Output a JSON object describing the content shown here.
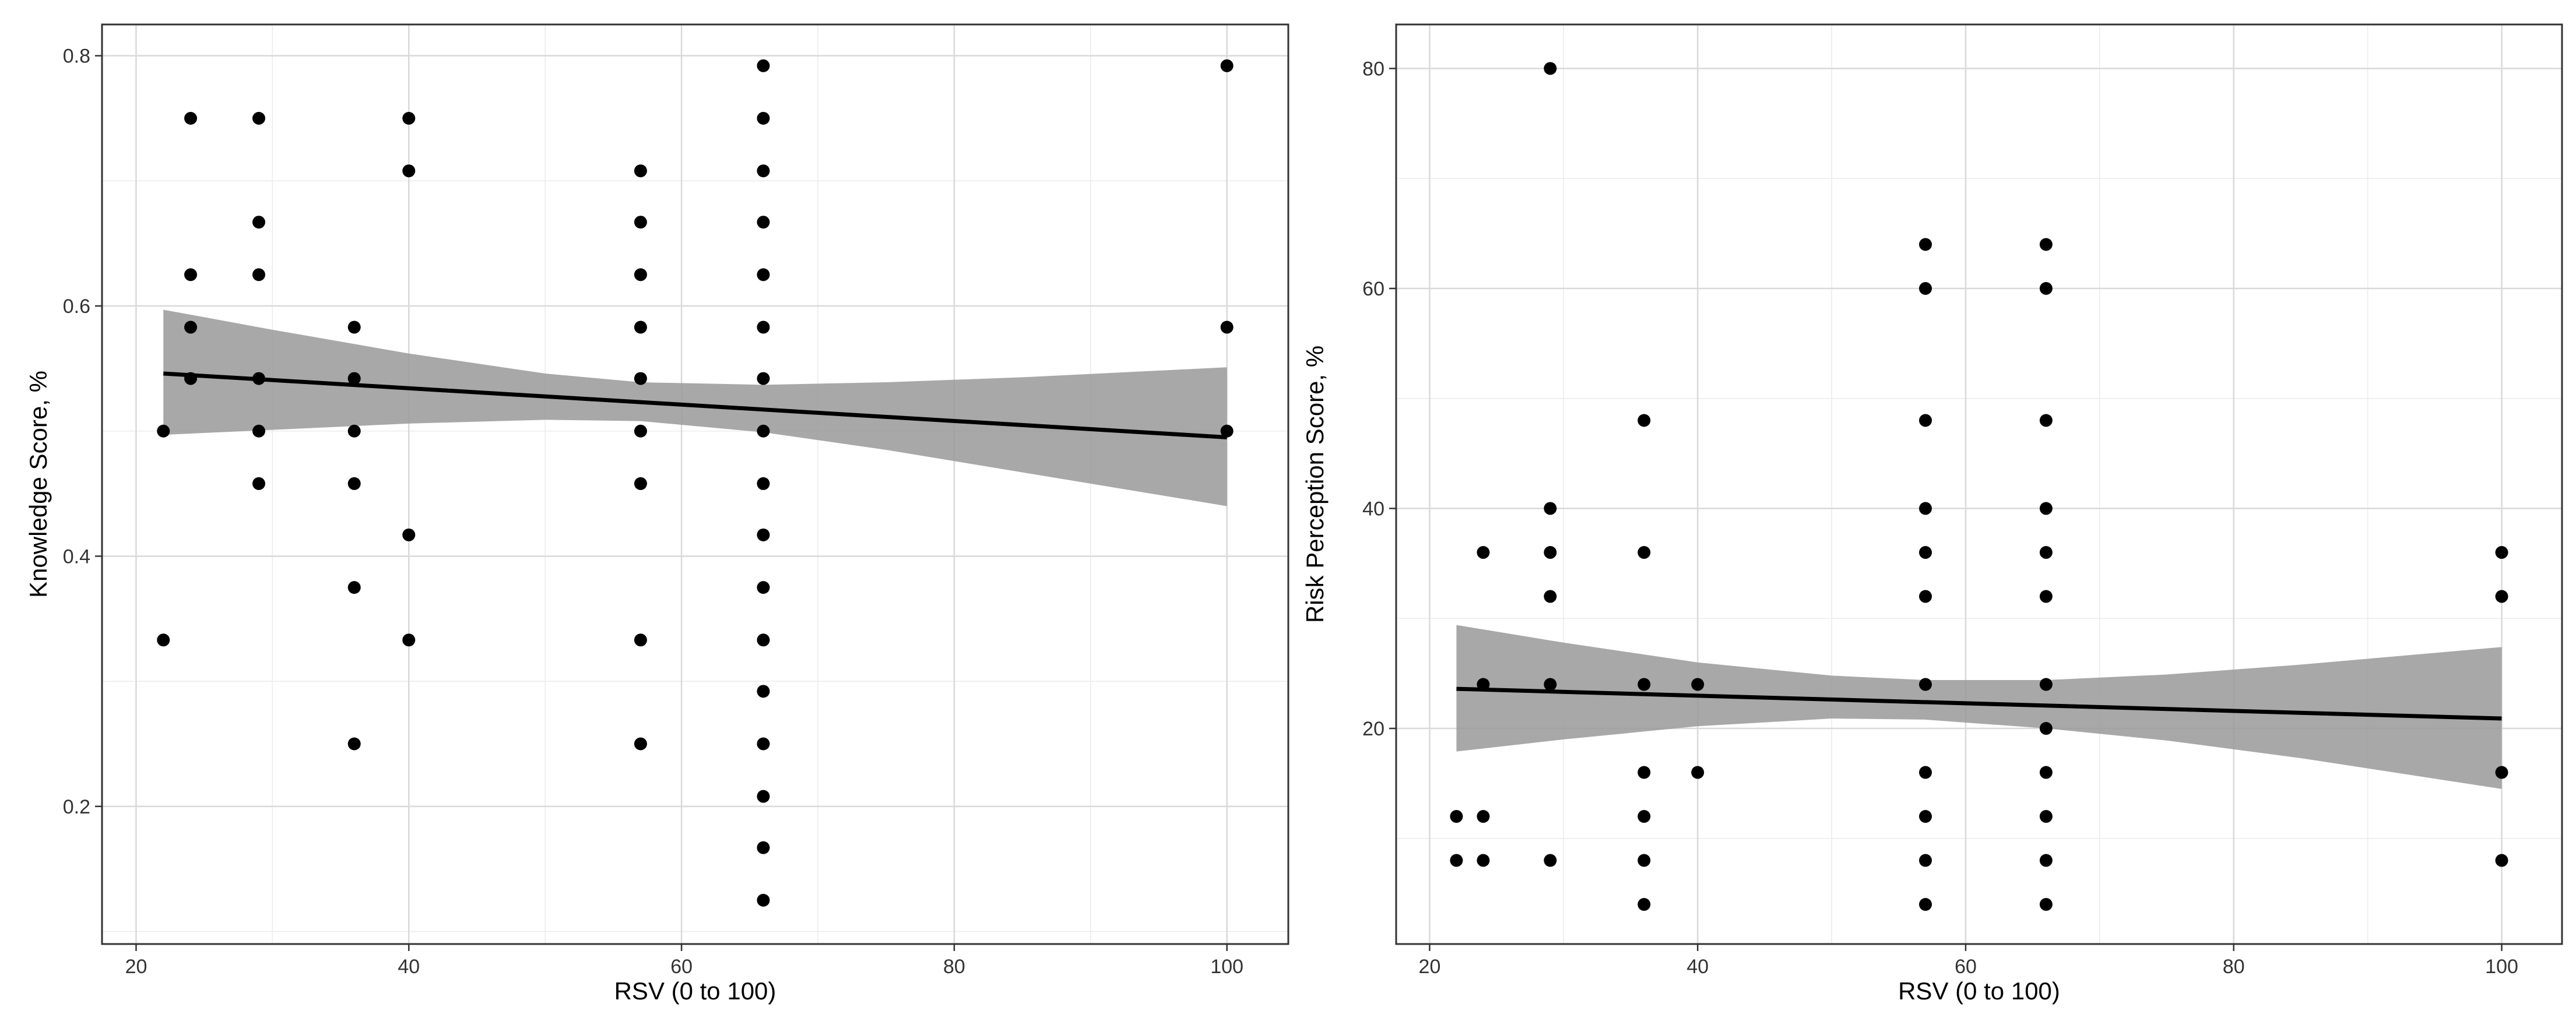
{
  "chart_data": [
    {
      "type": "scatter",
      "title": "",
      "xlabel": "RSV (0 to 100)",
      "ylabel": "Knowledge Score, %",
      "xlim": [
        17.5,
        104.5
      ],
      "ylim": [
        0.09,
        0.825
      ],
      "xticks": [
        20,
        40,
        60,
        80,
        100
      ],
      "xtick_labels": [
        "20",
        "40",
        "60",
        "80",
        "100"
      ],
      "yticks": [
        0.2,
        0.4,
        0.6,
        0.8
      ],
      "ytick_labels": [
        "0.2",
        "0.4",
        "0.6",
        "0.8"
      ],
      "grid": true,
      "points": [
        {
          "x": 22,
          "y": 0.5
        },
        {
          "x": 22,
          "y": 0.333
        },
        {
          "x": 24,
          "y": 0.75
        },
        {
          "x": 24,
          "y": 0.625
        },
        {
          "x": 24,
          "y": 0.583
        },
        {
          "x": 24,
          "y": 0.542
        },
        {
          "x": 29,
          "y": 0.75
        },
        {
          "x": 29,
          "y": 0.667
        },
        {
          "x": 29,
          "y": 0.625
        },
        {
          "x": 29,
          "y": 0.542
        },
        {
          "x": 29,
          "y": 0.5
        },
        {
          "x": 29,
          "y": 0.458
        },
        {
          "x": 36,
          "y": 0.583
        },
        {
          "x": 36,
          "y": 0.542
        },
        {
          "x": 36,
          "y": 0.5
        },
        {
          "x": 36,
          "y": 0.458
        },
        {
          "x": 36,
          "y": 0.375
        },
        {
          "x": 36,
          "y": 0.25
        },
        {
          "x": 40,
          "y": 0.75
        },
        {
          "x": 40,
          "y": 0.708
        },
        {
          "x": 40,
          "y": 0.417
        },
        {
          "x": 40,
          "y": 0.333
        },
        {
          "x": 57,
          "y": 0.708
        },
        {
          "x": 57,
          "y": 0.667
        },
        {
          "x": 57,
          "y": 0.625
        },
        {
          "x": 57,
          "y": 0.583
        },
        {
          "x": 57,
          "y": 0.542
        },
        {
          "x": 57,
          "y": 0.5
        },
        {
          "x": 57,
          "y": 0.458
        },
        {
          "x": 57,
          "y": 0.333
        },
        {
          "x": 57,
          "y": 0.25
        },
        {
          "x": 66,
          "y": 0.792
        },
        {
          "x": 66,
          "y": 0.75
        },
        {
          "x": 66,
          "y": 0.708
        },
        {
          "x": 66,
          "y": 0.667
        },
        {
          "x": 66,
          "y": 0.625
        },
        {
          "x": 66,
          "y": 0.583
        },
        {
          "x": 66,
          "y": 0.542
        },
        {
          "x": 66,
          "y": 0.5
        },
        {
          "x": 66,
          "y": 0.458
        },
        {
          "x": 66,
          "y": 0.417
        },
        {
          "x": 66,
          "y": 0.375
        },
        {
          "x": 66,
          "y": 0.333
        },
        {
          "x": 66,
          "y": 0.292
        },
        {
          "x": 66,
          "y": 0.25
        },
        {
          "x": 66,
          "y": 0.208
        },
        {
          "x": 66,
          "y": 0.167
        },
        {
          "x": 66,
          "y": 0.125
        },
        {
          "x": 100,
          "y": 0.792
        },
        {
          "x": 100,
          "y": 0.583
        },
        {
          "x": 100,
          "y": 0.5
        }
      ],
      "fit_line": {
        "x": [
          22,
          100
        ],
        "y": [
          0.546,
          0.495
        ]
      },
      "confidence_band": {
        "x": [
          22,
          30,
          40,
          50,
          57,
          66,
          75,
          85,
          100
        ],
        "lower": [
          0.497,
          0.501,
          0.506,
          0.509,
          0.508,
          0.499,
          0.485,
          0.467,
          0.44
        ],
        "upper": [
          0.597,
          0.581,
          0.562,
          0.546,
          0.539,
          0.537,
          0.539,
          0.543,
          0.551
        ]
      }
    },
    {
      "type": "scatter",
      "title": "",
      "xlabel": "RSV (0 to 100)",
      "ylabel": "Risk Perception Score, %",
      "xlim": [
        17.5,
        104.5
      ],
      "ylim": [
        0.4,
        84
      ],
      "xticks": [
        20,
        40,
        60,
        80,
        100
      ],
      "xtick_labels": [
        "20",
        "40",
        "60",
        "80",
        "100"
      ],
      "yticks": [
        20,
        40,
        60,
        80
      ],
      "ytick_labels": [
        "20",
        "40",
        "60",
        "80"
      ],
      "grid": true,
      "points": [
        {
          "x": 22,
          "y": 12
        },
        {
          "x": 22,
          "y": 8
        },
        {
          "x": 24,
          "y": 36
        },
        {
          "x": 24,
          "y": 24
        },
        {
          "x": 24,
          "y": 12
        },
        {
          "x": 24,
          "y": 8
        },
        {
          "x": 29,
          "y": 80
        },
        {
          "x": 29,
          "y": 40
        },
        {
          "x": 29,
          "y": 36
        },
        {
          "x": 29,
          "y": 32
        },
        {
          "x": 29,
          "y": 24
        },
        {
          "x": 29,
          "y": 8
        },
        {
          "x": 36,
          "y": 48
        },
        {
          "x": 36,
          "y": 36
        },
        {
          "x": 36,
          "y": 24
        },
        {
          "x": 36,
          "y": 16
        },
        {
          "x": 36,
          "y": 12
        },
        {
          "x": 36,
          "y": 8
        },
        {
          "x": 36,
          "y": 4
        },
        {
          "x": 40,
          "y": 24
        },
        {
          "x": 40,
          "y": 16
        },
        {
          "x": 57,
          "y": 64
        },
        {
          "x": 57,
          "y": 60
        },
        {
          "x": 57,
          "y": 48
        },
        {
          "x": 57,
          "y": 40
        },
        {
          "x": 57,
          "y": 36
        },
        {
          "x": 57,
          "y": 32
        },
        {
          "x": 57,
          "y": 24
        },
        {
          "x": 57,
          "y": 16
        },
        {
          "x": 57,
          "y": 12
        },
        {
          "x": 57,
          "y": 8
        },
        {
          "x": 57,
          "y": 4
        },
        {
          "x": 66,
          "y": 64
        },
        {
          "x": 66,
          "y": 60
        },
        {
          "x": 66,
          "y": 48
        },
        {
          "x": 66,
          "y": 40
        },
        {
          "x": 66,
          "y": 36
        },
        {
          "x": 66,
          "y": 32
        },
        {
          "x": 66,
          "y": 24
        },
        {
          "x": 66,
          "y": 20
        },
        {
          "x": 66,
          "y": 16
        },
        {
          "x": 66,
          "y": 12
        },
        {
          "x": 66,
          "y": 8
        },
        {
          "x": 66,
          "y": 4
        },
        {
          "x": 100,
          "y": 36
        },
        {
          "x": 100,
          "y": 32
        },
        {
          "x": 100,
          "y": 16
        },
        {
          "x": 100,
          "y": 8
        }
      ],
      "fit_line": {
        "x": [
          22,
          100
        ],
        "y": [
          23.6,
          20.9
        ]
      },
      "confidence_band": {
        "x": [
          22,
          30,
          40,
          50,
          57,
          66,
          75,
          85,
          100
        ],
        "lower": [
          17.9,
          19.0,
          20.2,
          20.9,
          20.8,
          20.0,
          18.9,
          17.3,
          14.5
        ],
        "upper": [
          29.4,
          27.8,
          26.0,
          24.8,
          24.4,
          24.4,
          24.9,
          25.8,
          27.4
        ]
      }
    }
  ]
}
